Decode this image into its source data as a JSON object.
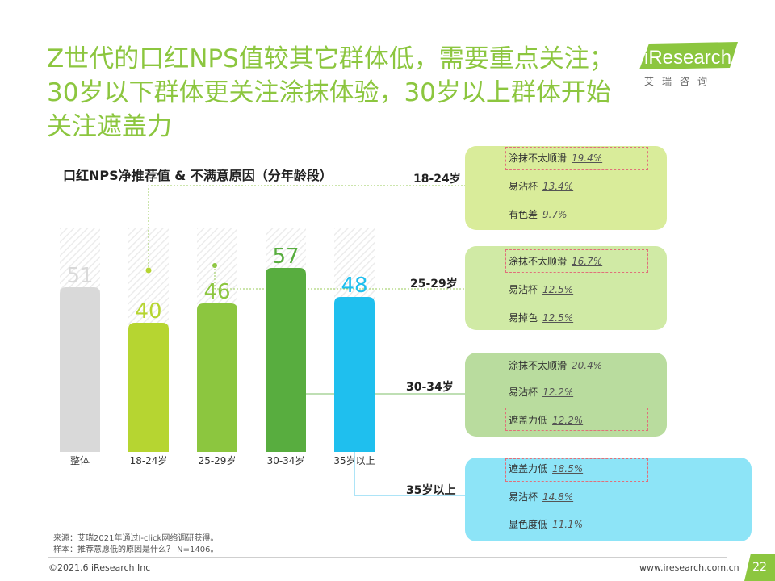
{
  "title_lines": [
    "Z世代的口红NPS值较其它群体低，需要重点关注；",
    "30岁以下群体更关注涂抹体验，30岁以上群体开始",
    "关注遮盖力"
  ],
  "logo": {
    "brand": "iResearch",
    "cn": "艾瑞咨询"
  },
  "colors": {
    "title": "#8cc63f",
    "overall": "#d9d9d9",
    "g1824": "#b6d531",
    "g2529": "#8cc63f",
    "g3034": "#58ad3f",
    "g35": "#1fbfee"
  },
  "chart_data": {
    "type": "bar",
    "title": "口红NPS净推荐值 & 不满意原因（分年龄段）",
    "categories": [
      "整体",
      "18-24岁",
      "25-29岁",
      "30-34岁",
      "35岁以上"
    ],
    "values": [
      51,
      40,
      46,
      57,
      48
    ],
    "ylim": [
      0,
      65
    ],
    "value_labels": [
      "51",
      "40",
      "46",
      "57",
      "48"
    ]
  },
  "reasons": [
    {
      "age": "18-24岁",
      "items": [
        {
          "label": "涂抹不太顺滑",
          "pct": "19.4%"
        },
        {
          "label": "易沾杯",
          "pct": "13.4%"
        },
        {
          "label": "有色差",
          "pct": "9.7%"
        }
      ]
    },
    {
      "age": "25-29岁",
      "items": [
        {
          "label": "涂抹不太顺滑",
          "pct": "16.7%"
        },
        {
          "label": "易沾杯",
          "pct": "12.5%"
        },
        {
          "label": "易掉色",
          "pct": "12.5%"
        }
      ]
    },
    {
      "age": "30-34岁",
      "items": [
        {
          "label": "涂抹不太顺滑",
          "pct": "20.4%"
        },
        {
          "label": "易沾杯",
          "pct": "12.2%"
        },
        {
          "label": "遮盖力低",
          "pct": "12.2%"
        }
      ]
    },
    {
      "age": "35岁以上",
      "items": [
        {
          "label": "遮盖力低",
          "pct": "18.5%"
        },
        {
          "label": "易沾杯",
          "pct": "14.8%"
        },
        {
          "label": "显色度低",
          "pct": "11.1%"
        }
      ]
    }
  ],
  "source": "来源：艾瑞2021年通过I-click网络调研获得。",
  "sample": "样本：推荐意愿低的原因是什么？ N=1406。",
  "copyright": "©2021.6 iResearch Inc",
  "website": "www.iresearch.com.cn",
  "page_number": "22"
}
